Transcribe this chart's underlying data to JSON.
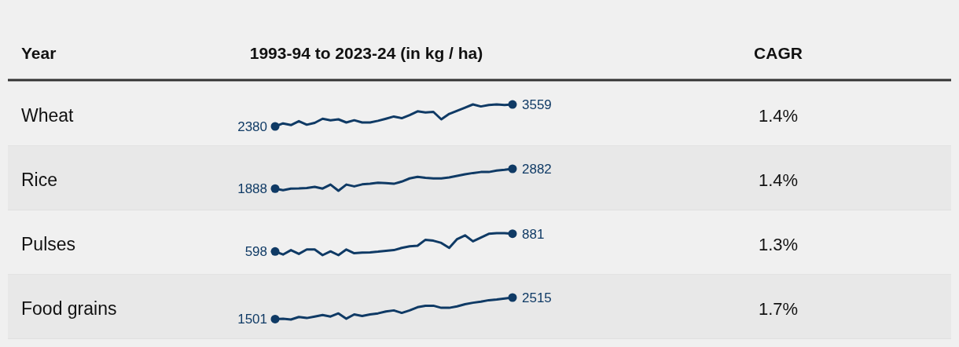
{
  "chart_data": [
    {
      "type": "other",
      "annotations": [
        "Year",
        "1993-94 to 2023-24 (in kg / ha)",
        "CAGR"
      ]
    },
    {
      "type": "line",
      "ylabel": "Wheat",
      "annotations": [
        "1.4%"
      ],
      "color": "#0f3a65",
      "categories": [
        null,
        null,
        null,
        null,
        null,
        null,
        null,
        null,
        null,
        null,
        null,
        null,
        null,
        null,
        null,
        null,
        null,
        null,
        null,
        null,
        null,
        null,
        null,
        null,
        null,
        null,
        null,
        null,
        null,
        null,
        null
      ],
      "values": [
        2380,
        2540,
        2450,
        2660,
        2470,
        2570,
        2790,
        2710,
        2760,
        2590,
        2710,
        2590,
        2590,
        2680,
        2790,
        2910,
        2820,
        2990,
        3190,
        3130,
        3160,
        2760,
        3050,
        3220,
        3390,
        3560,
        3450,
        3530,
        3560,
        3530,
        3559
      ],
      "value_labels": [
        "2380",
        null,
        null,
        null,
        null,
        null,
        null,
        null,
        null,
        null,
        null,
        null,
        null,
        null,
        null,
        null,
        null,
        null,
        null,
        null,
        null,
        null,
        null,
        null,
        null,
        null,
        null,
        null,
        null,
        null,
        "3559"
      ]
    },
    {
      "type": "line",
      "ylabel": "Rice",
      "annotations": [
        "1.4%"
      ],
      "color": "#0f3a65",
      "categories": [
        null,
        null,
        null,
        null,
        null,
        null,
        null,
        null,
        null,
        null,
        null,
        null,
        null,
        null,
        null,
        null,
        null,
        null,
        null,
        null,
        null,
        null,
        null,
        null,
        null,
        null,
        null,
        null,
        null,
        null,
        null
      ],
      "values": [
        1888,
        1810,
        1890,
        1900,
        1920,
        1980,
        1890,
        2090,
        1780,
        2090,
        2000,
        2100,
        2130,
        2180,
        2160,
        2130,
        2240,
        2400,
        2480,
        2430,
        2400,
        2400,
        2450,
        2530,
        2610,
        2670,
        2720,
        2720,
        2790,
        2830,
        2882
      ],
      "value_labels": [
        "1888",
        null,
        null,
        null,
        null,
        null,
        null,
        null,
        null,
        null,
        null,
        null,
        null,
        null,
        null,
        null,
        null,
        null,
        null,
        null,
        null,
        null,
        null,
        null,
        null,
        null,
        null,
        null,
        null,
        null,
        "2882"
      ]
    },
    {
      "type": "line",
      "ylabel": "Pulses",
      "annotations": [
        "1.3%"
      ],
      "color": "#0f3a65",
      "categories": [
        null,
        null,
        null,
        null,
        null,
        null,
        null,
        null,
        null,
        null,
        null,
        null,
        null,
        null,
        null,
        null,
        null,
        null,
        null,
        null,
        null,
        null,
        null,
        null,
        null,
        null,
        null,
        null,
        null,
        null,
        null
      ],
      "values": [
        598,
        550,
        620,
        560,
        630,
        630,
        540,
        600,
        540,
        630,
        570,
        580,
        585,
        595,
        610,
        620,
        655,
        680,
        690,
        785,
        770,
        735,
        655,
        795,
        855,
        760,
        820,
        880,
        890,
        890,
        881
      ],
      "value_labels": [
        "598",
        null,
        null,
        null,
        null,
        null,
        null,
        null,
        null,
        null,
        null,
        null,
        null,
        null,
        null,
        null,
        null,
        null,
        null,
        null,
        null,
        null,
        null,
        null,
        null,
        null,
        null,
        null,
        null,
        null,
        "881"
      ]
    },
    {
      "type": "line",
      "ylabel": "Food grains",
      "annotations": [
        "1.7%"
      ],
      "color": "#0f3a65",
      "categories": [
        null,
        null,
        null,
        null,
        null,
        null,
        null,
        null,
        null,
        null,
        null,
        null,
        null,
        null,
        null,
        null,
        null,
        null,
        null,
        null,
        null,
        null,
        null,
        null,
        null,
        null,
        null,
        null,
        null,
        null,
        null
      ],
      "values": [
        1501,
        1520,
        1480,
        1600,
        1550,
        1620,
        1690,
        1620,
        1770,
        1520,
        1720,
        1650,
        1720,
        1770,
        1860,
        1910,
        1790,
        1910,
        2060,
        2130,
        2130,
        2030,
        2030,
        2100,
        2200,
        2270,
        2320,
        2390,
        2420,
        2470,
        2515
      ],
      "value_labels": [
        "1501",
        null,
        null,
        null,
        null,
        null,
        null,
        null,
        null,
        null,
        null,
        null,
        null,
        null,
        null,
        null,
        null,
        null,
        null,
        null,
        null,
        null,
        null,
        null,
        null,
        null,
        null,
        null,
        null,
        null,
        "2515"
      ]
    }
  ]
}
